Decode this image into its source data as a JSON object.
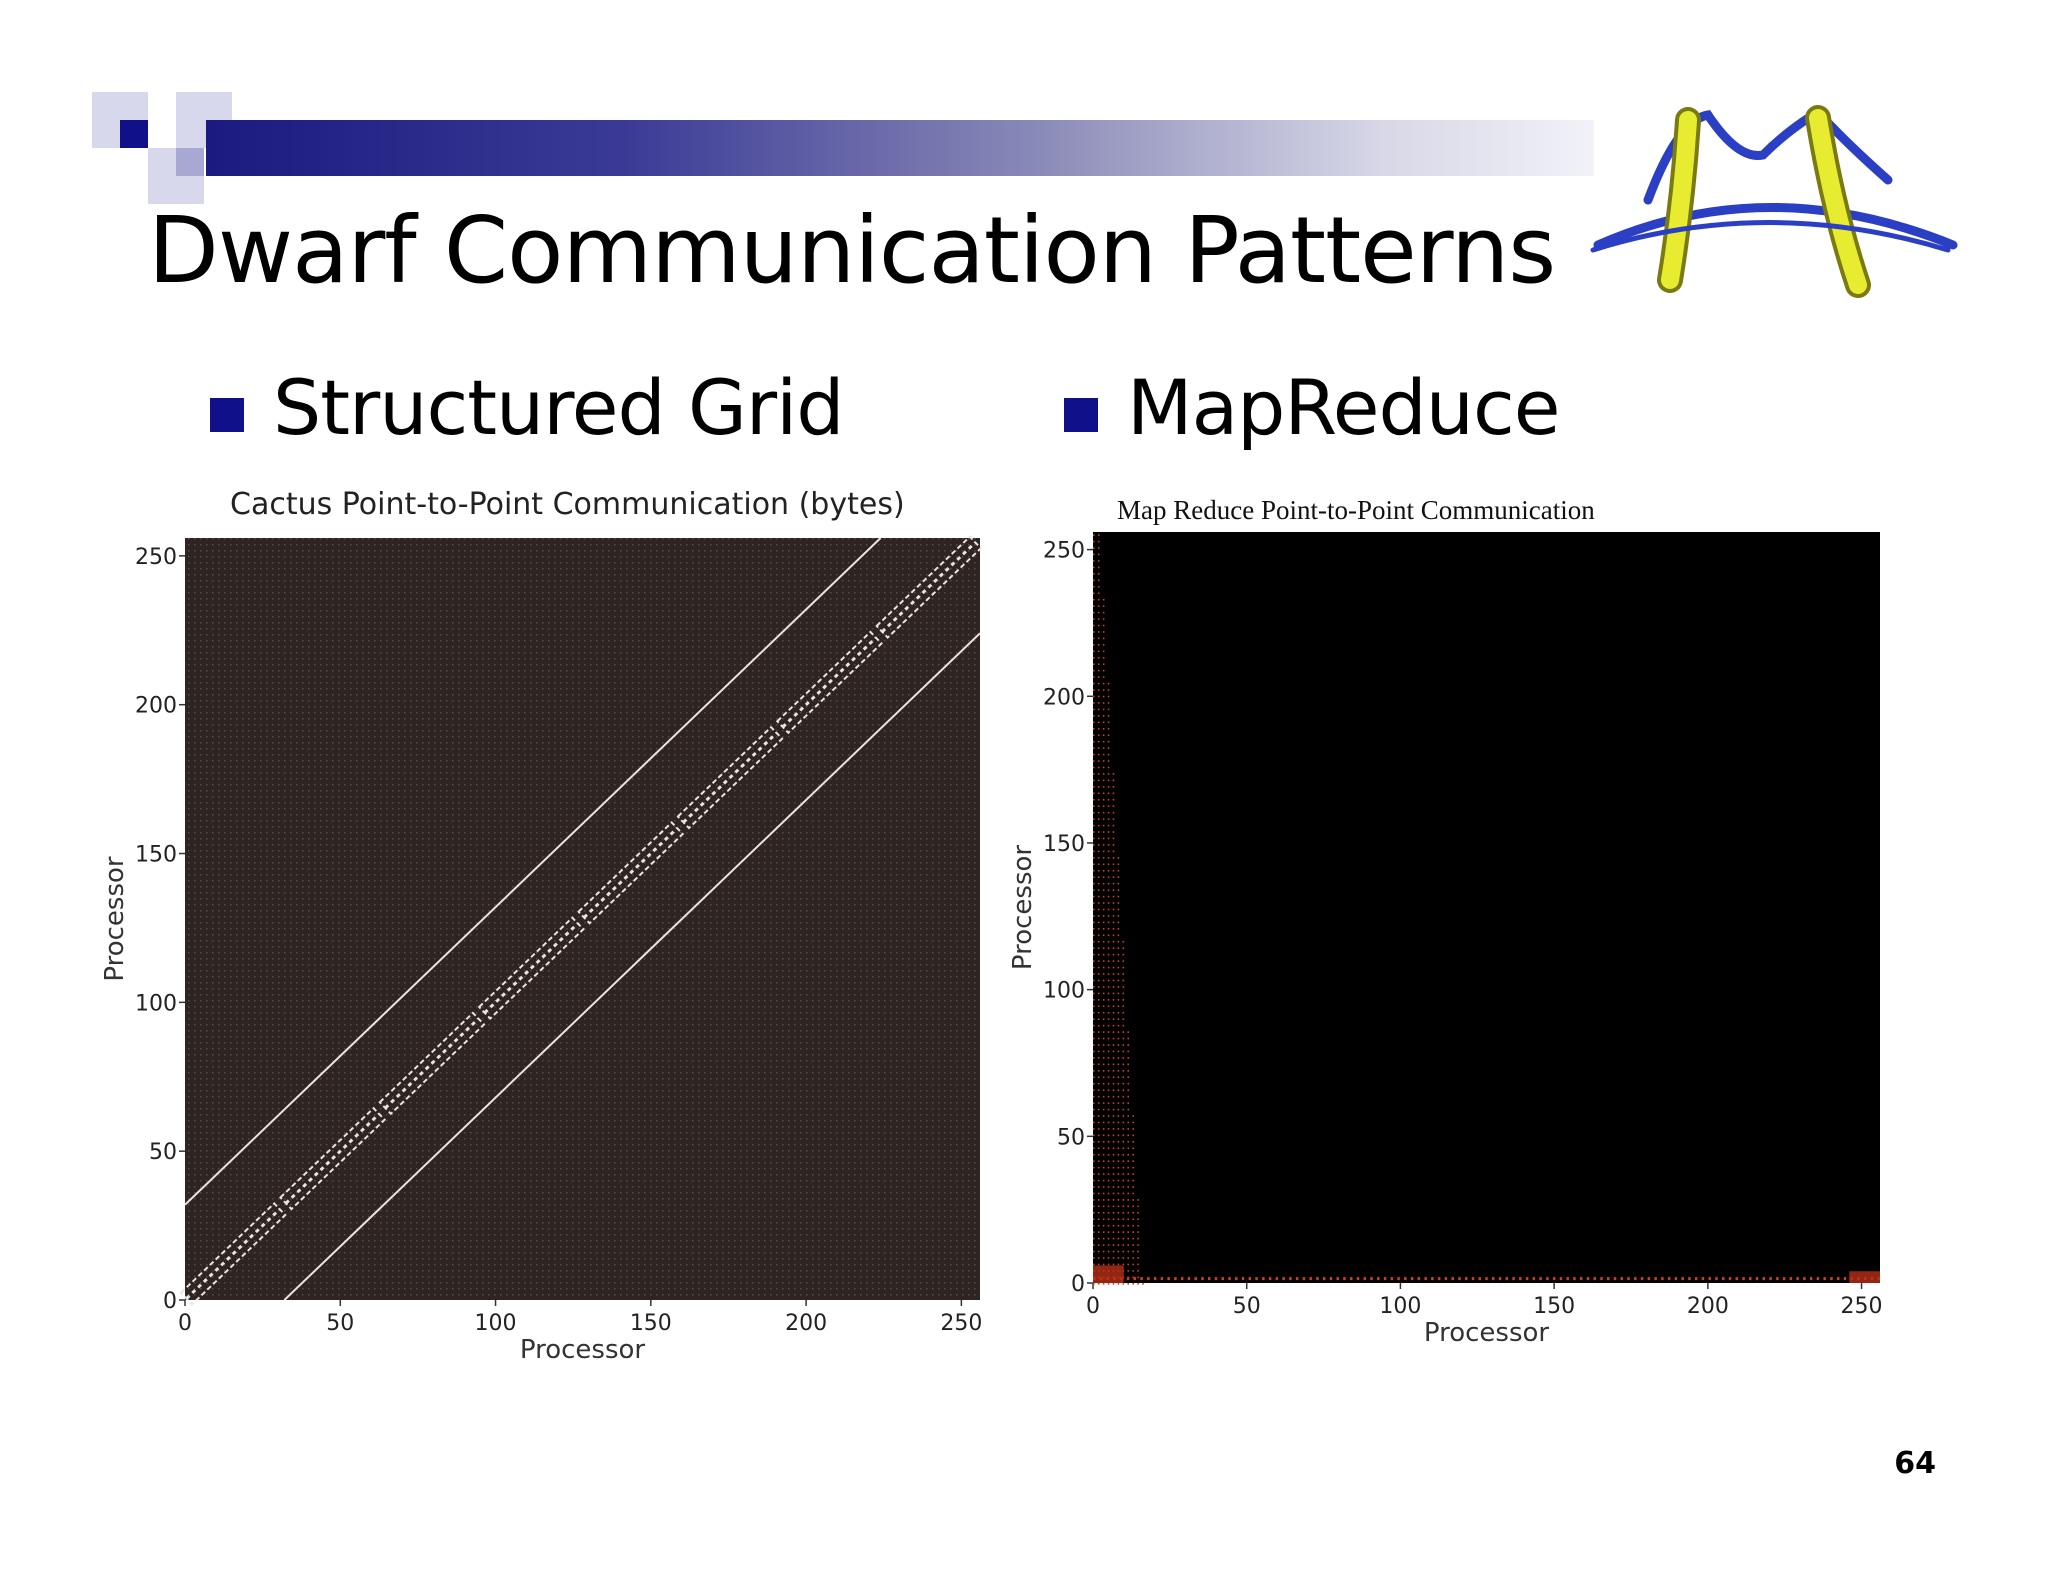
{
  "slide": {
    "title": "Dwarf Communication Patterns",
    "page_number": "64",
    "accent_color": "#10108a"
  },
  "bullets": [
    {
      "label": "Structured Grid"
    },
    {
      "label": "MapReduce"
    }
  ],
  "chart_data": [
    {
      "type": "heatmap",
      "title": "Cactus Point-to-Point Communication (bytes)",
      "xlabel": "Processor",
      "ylabel": "Processor",
      "xlim": [
        0,
        256
      ],
      "ylim": [
        0,
        256
      ],
      "x_ticks": [
        0,
        50,
        100,
        150,
        200,
        250
      ],
      "y_ticks": [
        0,
        50,
        100,
        150,
        200,
        250
      ],
      "background": "#2e2422",
      "line_color": "#e8e4e0",
      "pattern": {
        "main_diagonal_offset": 0,
        "block_size": 32,
        "off_diagonal_offsets": [
          32,
          -32
        ]
      }
    },
    {
      "type": "heatmap",
      "title": "Map Reduce Point-to-Point Communication",
      "xlabel": "Processor",
      "ylabel": "Processor",
      "xlim": [
        0,
        256
      ],
      "ylim": [
        0,
        256
      ],
      "x_ticks": [
        0,
        50,
        100,
        150,
        200,
        250
      ],
      "y_ticks": [
        0,
        50,
        100,
        150,
        200,
        250
      ],
      "background": "#000000",
      "dot_color": "#d04020",
      "pattern": {
        "left_band_width_bottom": 16,
        "left_band_width_top": 2,
        "bottom_band_height": 2
      }
    }
  ]
}
